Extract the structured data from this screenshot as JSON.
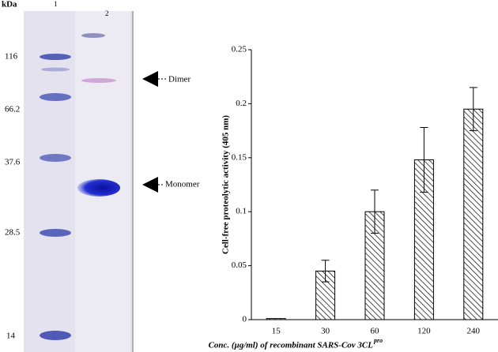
{
  "gel": {
    "unit": "kDa",
    "lanes": [
      "1",
      "2"
    ],
    "markers": [
      "116",
      "66.2",
      "37.6",
      "28.5",
      "14"
    ],
    "annotations": [
      "Dimer",
      "Monomer"
    ]
  },
  "chart_data": {
    "type": "bar",
    "ylabel": "Cell-free proteolytic activity (405 nm)",
    "xlabel": "Conc. (μg/ml) of recombinant SARS-Cov 3CL",
    "xlabel_superscript": "pro",
    "categories": [
      "15",
      "30",
      "60",
      "120",
      "240"
    ],
    "values": [
      0.001,
      0.045,
      0.1,
      0.148,
      0.195
    ],
    "errors": [
      0,
      0.01,
      0.02,
      0.03,
      0.02
    ],
    "color": "#000000",
    "ylim": [
      0,
      0.25
    ],
    "yticks": [
      0,
      0.05,
      0.1,
      0.15,
      0.2,
      0.25
    ]
  }
}
